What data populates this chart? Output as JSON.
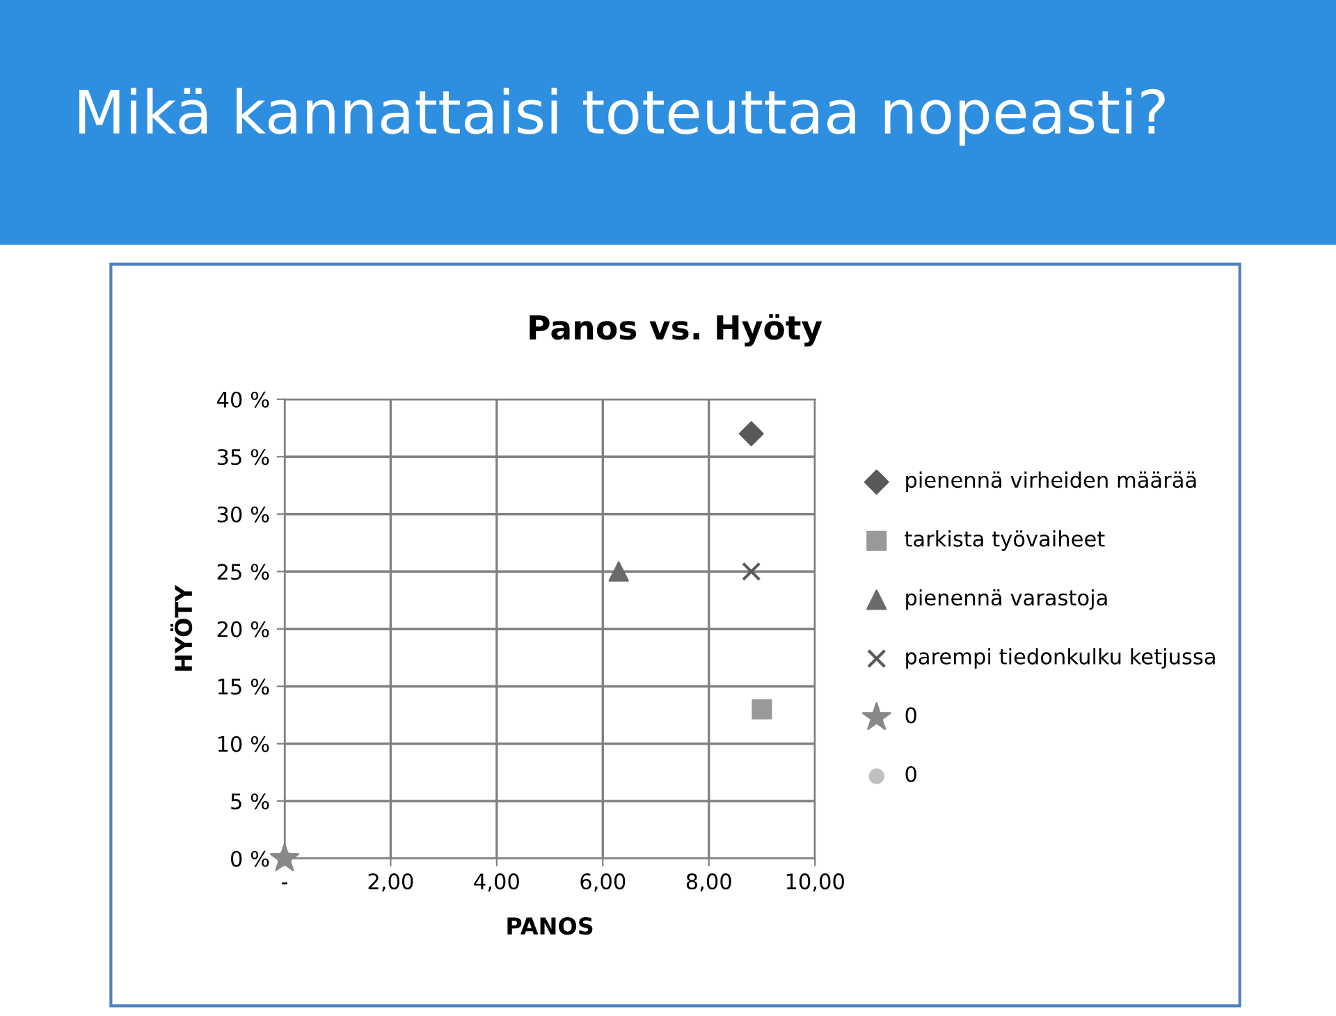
{
  "chart_data": {
    "type": "scatter",
    "title": "Mikä kannattaisi toteuttaa nopeasti?",
    "subtitle": "Panos vs. Hyöty",
    "xlabel": "PANOS",
    "ylabel": "HYÖTY",
    "xlim": [
      0,
      10
    ],
    "xticks": [
      {
        "value": 0,
        "label": "-"
      },
      {
        "value": 2,
        "label": "2,00"
      },
      {
        "value": 4,
        "label": "4,00"
      },
      {
        "value": 6,
        "label": "6,00"
      },
      {
        "value": 8,
        "label": "8,00"
      },
      {
        "value": 10,
        "label": "10,00"
      }
    ],
    "ylim": [
      0,
      40
    ],
    "yticks": [
      {
        "value": 0,
        "label": "0 %"
      },
      {
        "value": 5,
        "label": "5 %"
      },
      {
        "value": 10,
        "label": "10 %"
      },
      {
        "value": 15,
        "label": "15 %"
      },
      {
        "value": 20,
        "label": "20 %"
      },
      {
        "value": 25,
        "label": "25 %"
      },
      {
        "value": 30,
        "label": "30 %"
      },
      {
        "value": 35,
        "label": "35 %"
      },
      {
        "value": 40,
        "label": "40 %"
      }
    ],
    "grid": true,
    "legend": "right",
    "series": [
      {
        "name": "pienennä virheiden määrää",
        "color": "#595959",
        "marker": "diamond",
        "x": [
          8.8
        ],
        "values": [
          37
        ]
      },
      {
        "name": "tarkista työvaiheet",
        "color": "#999999",
        "marker": "square",
        "x": [
          9.0
        ],
        "values": [
          13
        ]
      },
      {
        "name": "pienennä varastoja",
        "color": "#6b6b6b",
        "marker": "triangle",
        "x": [
          6.3
        ],
        "values": [
          25
        ]
      },
      {
        "name": "parempi tiedonkulku ketjussa",
        "color": "#595959",
        "marker": "cross",
        "x": [
          8.8
        ],
        "values": [
          25
        ]
      },
      {
        "name": "0",
        "color": "#888888",
        "marker": "star",
        "x": [
          0
        ],
        "values": [
          0
        ]
      },
      {
        "name": "0",
        "color": "#c0c0c0",
        "marker": "circle",
        "x": [
          0
        ],
        "values": [
          0
        ]
      }
    ]
  }
}
